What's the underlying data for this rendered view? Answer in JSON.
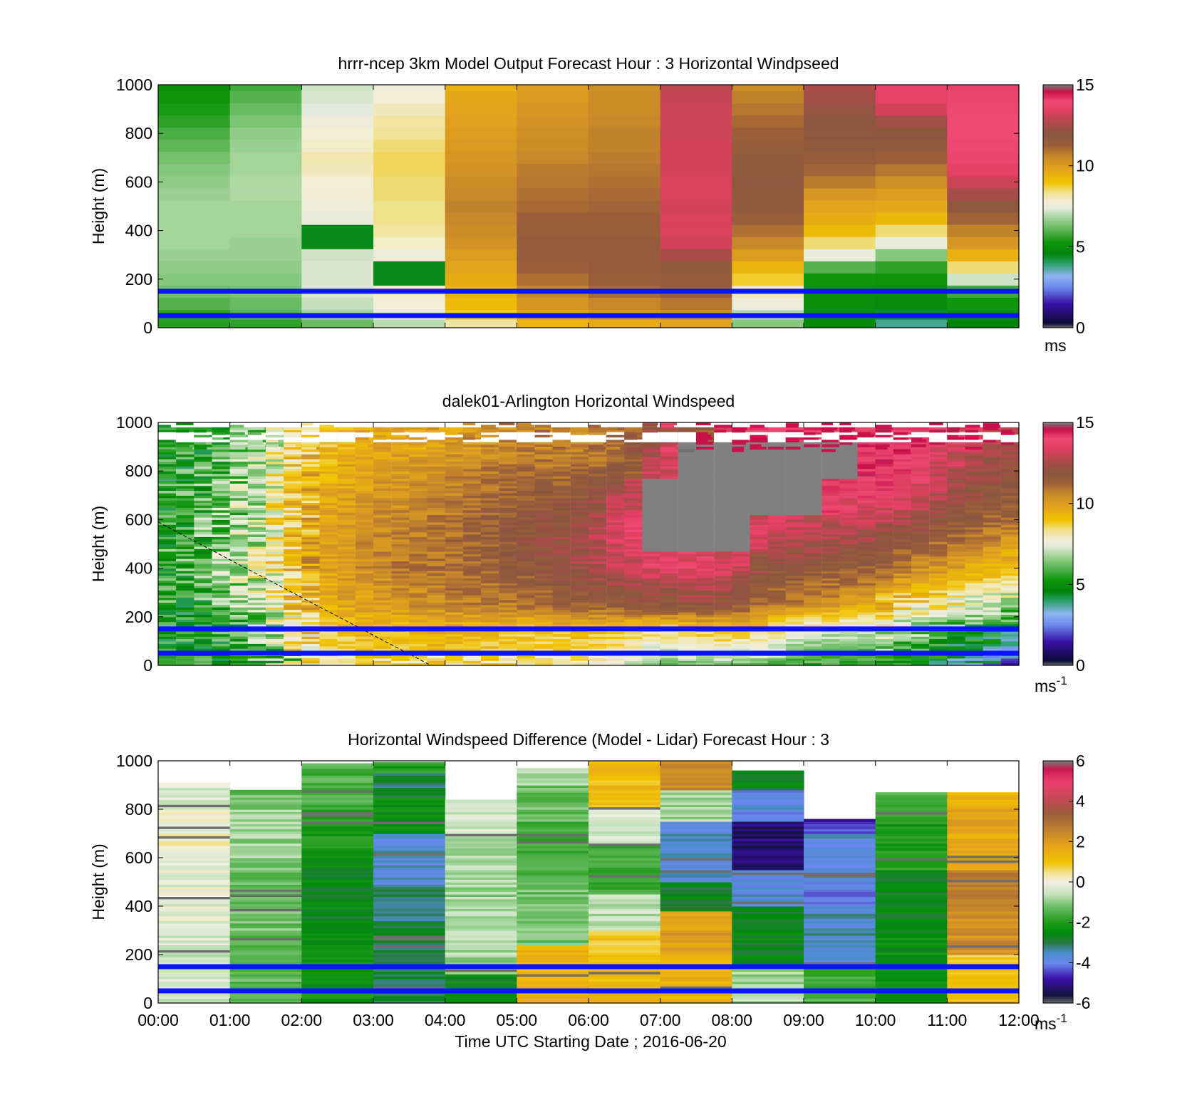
{
  "figure": {
    "xlabel": "Time UTC  Starting Date ; 2016-06-20",
    "colors": {
      "marker_lines": "#0a14ff",
      "missing": "#808080",
      "frame": "#000000"
    }
  },
  "chart_data": [
    {
      "type": "heatmap",
      "title": "hrrr-ncep 3km Model Output   Forecast Hour : 3 Horizontal Windpseed",
      "ylabel": "Height (m)",
      "ylim": [
        0,
        1000
      ],
      "yticks": [
        "0",
        "200",
        "400",
        "600",
        "800",
        "1000"
      ],
      "xlim": [
        0,
        12
      ],
      "colorbar": {
        "range": [
          0,
          15
        ],
        "ticks": [
          "0",
          "5",
          "10",
          "15"
        ],
        "unit": "ms",
        "unit_sup": "",
        "colormap": "speed"
      },
      "marker_lines_m": [
        150,
        50
      ],
      "z_heights_m": [
        20,
        50,
        100,
        150,
        200,
        250,
        300,
        350,
        400,
        450,
        500,
        550,
        600,
        650,
        700,
        750,
        800,
        850,
        900,
        950,
        1000
      ],
      "z": [
        [
          5.5,
          5.6,
          6.0,
          6.3,
          6.5,
          6.6,
          6.7,
          6.8,
          6.8,
          6.8,
          6.8,
          6.7,
          6.6,
          6.5,
          6.3,
          6.1,
          5.9,
          5.6,
          5.4,
          5.2,
          5.0
        ],
        [
          5.6,
          6.0,
          6.2,
          6.4,
          6.5,
          6.6,
          6.7,
          6.7,
          6.8,
          6.8,
          6.8,
          6.9,
          6.9,
          6.8,
          6.8,
          6.7,
          6.6,
          6.4,
          6.2,
          6.0,
          5.8
        ],
        [
          6.2,
          6.8,
          7.1,
          7.3,
          7.3,
          7.3,
          7.2,
          4.5,
          4.5,
          7.5,
          7.6,
          7.7,
          7.8,
          8.0,
          8.1,
          7.9,
          7.8,
          7.6,
          7.4,
          7.3,
          7.2
        ],
        [
          7.0,
          7.5,
          7.8,
          7.9,
          4.5,
          4.5,
          7.6,
          7.9,
          8.2,
          8.4,
          8.4,
          8.5,
          8.5,
          8.6,
          8.6,
          8.5,
          8.3,
          8.2,
          8.0,
          7.8,
          7.6
        ],
        [
          8.2,
          8.8,
          9.2,
          9.4,
          9.6,
          9.8,
          10.0,
          10.3,
          10.5,
          10.6,
          10.7,
          10.6,
          10.5,
          10.3,
          10.2,
          10.1,
          10.0,
          9.9,
          9.8,
          9.7,
          9.5
        ],
        [
          9.4,
          9.8,
          10.2,
          10.6,
          11.0,
          11.3,
          11.5,
          11.5,
          11.4,
          11.3,
          11.1,
          11.0,
          10.9,
          10.8,
          10.6,
          10.5,
          10.4,
          10.3,
          10.2,
          10.1,
          10.0
        ],
        [
          9.6,
          10.2,
          10.6,
          11.1,
          11.4,
          11.5,
          11.5,
          11.5,
          11.4,
          11.3,
          11.2,
          11.1,
          11.0,
          10.9,
          10.8,
          10.7,
          10.7,
          10.6,
          10.5,
          10.5,
          10.4
        ],
        [
          9.8,
          10.4,
          10.9,
          11.3,
          11.5,
          11.6,
          12.6,
          13.2,
          13.3,
          13.3,
          13.2,
          13.3,
          13.3,
          13.2,
          13.2,
          13.2,
          13.1,
          13.1,
          13.1,
          13.0,
          12.9
        ],
        [
          6.5,
          7.0,
          7.6,
          8.0,
          8.8,
          9.4,
          10.0,
          10.6,
          11.0,
          11.4,
          11.6,
          11.7,
          11.8,
          11.7,
          11.6,
          11.5,
          11.3,
          11.1,
          10.9,
          10.7,
          10.5
        ],
        [
          4.8,
          5.0,
          5.0,
          5.1,
          5.3,
          6.0,
          7.5,
          8.5,
          9.2,
          9.6,
          9.8,
          10.2,
          10.8,
          11.2,
          11.5,
          11.7,
          11.8,
          11.9,
          12.2,
          12.4,
          12.6
        ],
        [
          3.8,
          4.4,
          4.9,
          5.0,
          5.2,
          5.6,
          6.5,
          7.5,
          8.5,
          9.3,
          9.7,
          10.0,
          10.4,
          10.9,
          11.3,
          11.6,
          11.9,
          12.4,
          13.2,
          13.6,
          13.7
        ],
        [
          4.6,
          5.0,
          5.3,
          5.8,
          7.2,
          8.5,
          9.5,
          10.2,
          10.7,
          11.2,
          11.8,
          12.5,
          13.1,
          13.5,
          13.8,
          13.9,
          14.0,
          14.0,
          13.9,
          13.8,
          13.7
        ]
      ]
    },
    {
      "type": "heatmap",
      "title": "dalek01-Arlington  Horizontal Windspeed",
      "ylabel": "Height (m)",
      "ylim": [
        0,
        1000
      ],
      "yticks": [
        "0",
        "200",
        "400",
        "600",
        "800",
        "1000"
      ],
      "xlim": [
        0,
        12
      ],
      "colorbar": {
        "range": [
          0,
          15
        ],
        "ticks": [
          "0",
          "5",
          "10",
          "15"
        ],
        "unit": "ms",
        "unit_sup": "-1",
        "colormap": "speed"
      },
      "marker_lines_m": [
        150,
        50
      ],
      "dashed_line": [
        [
          0,
          590
        ],
        [
          3.8,
          0
        ]
      ],
      "n_columns": 48,
      "control_hours": [
        0,
        0.5,
        1,
        1.5,
        2,
        3,
        4,
        5,
        6,
        6.5,
        7,
        7.5,
        8,
        8.5,
        9,
        9.5,
        10,
        10.5,
        11,
        11.5,
        12
      ],
      "control_heights_m": [
        0,
        150,
        250,
        400,
        550,
        700,
        850,
        1000
      ],
      "control_values": [
        [
          5.2,
          5.0,
          5.5,
          5.5,
          5.6,
          5.4,
          5.0,
          5.0
        ],
        [
          5.4,
          5.0,
          5.2,
          5.6,
          5.8,
          5.6,
          5.4,
          5.2
        ],
        [
          5.6,
          5.3,
          6.5,
          6.8,
          6.6,
          6.4,
          6.0,
          5.8
        ],
        [
          7.0,
          6.5,
          7.2,
          7.5,
          7.6,
          7.4,
          7.2,
          7.0
        ],
        [
          8.2,
          8.6,
          9.2,
          9.5,
          9.5,
          9.3,
          9.0,
          8.8
        ],
        [
          8.8,
          9.2,
          10.0,
          10.5,
          10.4,
          10.2,
          9.8,
          9.5
        ],
        [
          9.0,
          9.5,
          10.5,
          11.0,
          11.0,
          10.6,
          10.2,
          9.8
        ],
        [
          8.5,
          9.0,
          10.8,
          11.5,
          11.8,
          11.4,
          10.8,
          10.3
        ],
        [
          8.0,
          9.2,
          11.5,
          12.6,
          12.6,
          11.8,
          10.8,
          10.5
        ],
        [
          7.5,
          9.0,
          11.6,
          13.2,
          13.6,
          13.0,
          11.5,
          11.0
        ],
        [
          6.0,
          8.5,
          11.8,
          13.4,
          -1,
          -1,
          13.3,
          11.5
        ],
        [
          6.5,
          9.0,
          12.0,
          13.5,
          -1,
          -1,
          -1,
          11.5
        ],
        [
          6.5,
          9.2,
          11.8,
          13.3,
          -1,
          -1,
          -1,
          13.5
        ],
        [
          6.2,
          8.6,
          11.0,
          12.0,
          13.2,
          -1,
          -1,
          14.0
        ],
        [
          5.8,
          7.6,
          10.5,
          11.8,
          13.0,
          -1,
          -1,
          14.0
        ],
        [
          5.6,
          7.2,
          10.2,
          11.6,
          12.8,
          13.8,
          -1,
          14.0
        ],
        [
          5.3,
          7.4,
          9.5,
          11.4,
          12.5,
          13.8,
          14.2,
          14.0
        ],
        [
          4.8,
          6.8,
          8.6,
          10.5,
          12.0,
          13.5,
          14.0,
          13.8
        ],
        [
          4.0,
          5.8,
          7.8,
          10.0,
          11.5,
          12.5,
          13.2,
          13.5
        ],
        [
          3.3,
          5.4,
          7.4,
          9.5,
          11.0,
          12.0,
          12.4,
          13.4
        ],
        [
          2.2,
          4.8,
          6.5,
          9.0,
          10.5,
          11.5,
          12.0,
          13.2
        ]
      ]
    },
    {
      "type": "heatmap",
      "title": "Horizontal Windspeed Difference (Model - Lidar) Forecast Hour : 3",
      "ylabel": "Height (m)",
      "xlabel": "Time UTC  Starting Date ; 2016-06-20",
      "ylim": [
        0,
        1000
      ],
      "yticks": [
        "0",
        "200",
        "400",
        "600",
        "800",
        "1000"
      ],
      "xlim": [
        0,
        12
      ],
      "xticks": [
        "00:00",
        "01:00",
        "02:00",
        "03:00",
        "04:00",
        "05:00",
        "06:00",
        "07:00",
        "08:00",
        "09:00",
        "10:00",
        "11:00",
        "12:00"
      ],
      "colorbar": {
        "range": [
          -6,
          6
        ],
        "ticks": [
          "-6",
          "-4",
          "-2",
          "0",
          "2",
          "4",
          "6"
        ],
        "unit": "ms",
        "unit_sup": "-1",
        "colormap": "diff"
      },
      "marker_lines_m": [
        150,
        50
      ],
      "columns": [
        {
          "top_m": 910,
          "lo_m": 0,
          "segments": [
            [
              0,
              -0.4
            ],
            [
              300,
              -0.2
            ],
            [
              600,
              0.1
            ],
            [
              800,
              -0.3
            ]
          ]
        },
        {
          "top_m": 880,
          "lo_m": 0,
          "segments": [
            [
              0,
              -1.4
            ],
            [
              300,
              -1.2
            ],
            [
              600,
              -0.9
            ],
            [
              800,
              -1.3
            ]
          ]
        },
        {
          "top_m": 990,
          "lo_m": 0,
          "segments": [
            [
              0,
              -2.3
            ],
            [
              300,
              -2.6
            ],
            [
              600,
              -2.0
            ],
            [
              800,
              -1.5
            ]
          ]
        },
        {
          "top_m": 995,
          "lo_m": 0,
          "segments": [
            [
              0,
              -2.9
            ],
            [
              320,
              -3.1
            ],
            [
              480,
              -3.6
            ],
            [
              700,
              -2.4
            ],
            [
              850,
              -3.0
            ],
            [
              950,
              -2.0
            ]
          ]
        },
        {
          "top_m": 840,
          "lo_m": 0,
          "segments": [
            [
              0,
              -2.5
            ],
            [
              120,
              -0.8
            ],
            [
              500,
              -0.7
            ],
            [
              700,
              -0.4
            ]
          ]
        },
        {
          "top_m": 970,
          "lo_m": 0,
          "segments": [
            [
              0,
              1.4
            ],
            [
              240,
              -1.2
            ],
            [
              500,
              -1.6
            ],
            [
              750,
              -1.3
            ],
            [
              900,
              -0.6
            ]
          ]
        },
        {
          "top_m": 1000,
          "lo_m": 0,
          "segments": [
            [
              0,
              1.3
            ],
            [
              200,
              1.0
            ],
            [
              300,
              -0.6
            ],
            [
              450,
              -1.6
            ],
            [
              650,
              -0.3
            ],
            [
              800,
              1.2
            ]
          ]
        },
        {
          "top_m": 1000,
          "lo_m": 0,
          "segments": [
            [
              0,
              1.4
            ],
            [
              200,
              2.0
            ],
            [
              380,
              -2.7
            ],
            [
              500,
              -3.6
            ],
            [
              750,
              -0.8
            ],
            [
              880,
              2.5
            ]
          ]
        },
        {
          "top_m": 960,
          "lo_m": 0,
          "segments": [
            [
              0,
              -0.8
            ],
            [
              150,
              -2.6
            ],
            [
              400,
              -3.7
            ],
            [
              550,
              -5.2
            ],
            [
              750,
              -3.8
            ],
            [
              880,
              -2.6
            ]
          ]
        },
        {
          "top_m": 760,
          "lo_m": 0,
          "segments": [
            [
              0,
              -1.6
            ],
            [
              150,
              -3.5
            ],
            [
              400,
              -4.0
            ],
            [
              600,
              -3.6
            ],
            [
              700,
              -4.6
            ]
          ]
        },
        {
          "top_m": 870,
          "lo_m": 0,
          "segments": [
            [
              0,
              -2.4
            ],
            [
              300,
              -2.6
            ],
            [
              550,
              -2.0
            ],
            [
              800,
              -1.6
            ]
          ]
        },
        {
          "top_m": 870,
          "lo_m": 0,
          "segments": [
            [
              0,
              0.9
            ],
            [
              200,
              2.3
            ],
            [
              400,
              2.7
            ],
            [
              550,
              1.7
            ],
            [
              800,
              1.4
            ]
          ]
        }
      ]
    }
  ]
}
